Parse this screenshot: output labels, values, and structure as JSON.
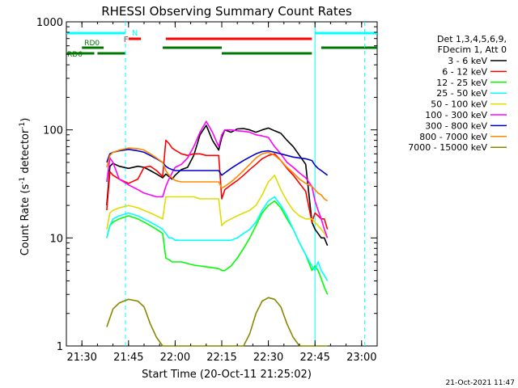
{
  "chart_data": {
    "type": "line",
    "title": "RHESSI Observing Summary Count Rates",
    "xlabel": "Start Time (20-Oct-11 21:25:02)",
    "ylabel_main": "Count Rate (s",
    "ylabel_sup": "-1",
    "ylabel_mid": " detector",
    "ylabel_sup2": "-1",
    "ylabel_end": ")",
    "y_scale": "log",
    "xlim": [
      25,
      125
    ],
    "ylim": [
      1,
      1000
    ],
    "x_ticks": [
      {
        "v": 30,
        "label": "21:30"
      },
      {
        "v": 45,
        "label": "21:45"
      },
      {
        "v": 60,
        "label": "22:00"
      },
      {
        "v": 75,
        "label": "22:15"
      },
      {
        "v": 90,
        "label": "22:30"
      },
      {
        "v": 105,
        "label": "22:45"
      },
      {
        "v": 120,
        "label": "23:00"
      }
    ],
    "y_ticks": [
      {
        "v": 1,
        "label": "1"
      },
      {
        "v": 10,
        "label": "10"
      },
      {
        "v": 100,
        "label": "100"
      },
      {
        "v": 1000,
        "label": "1000"
      }
    ],
    "legend_header": [
      "Det 1,3,4,5,6,9,",
      "FDecim 1, Att 0"
    ],
    "legend_position": "right",
    "series": [
      {
        "name": "3 - 6 keV",
        "color": "#000000",
        "x": [
          38,
          39,
          40,
          42,
          45,
          48,
          50,
          52,
          54,
          56,
          57,
          58,
          59,
          60,
          62,
          64,
          66,
          68,
          70,
          72,
          74,
          75,
          76,
          78,
          80,
          82,
          84,
          86,
          88,
          90,
          92,
          94,
          96,
          98,
          100,
          102,
          104,
          105,
          106,
          107,
          108,
          109
        ],
        "y": [
          20,
          46,
          49,
          46,
          44,
          46,
          45,
          42,
          39,
          36,
          39,
          37,
          35,
          38,
          43,
          45,
          58,
          90,
          110,
          80,
          65,
          85,
          100,
          95,
          102,
          103,
          100,
          95,
          100,
          104,
          98,
          93,
          80,
          70,
          58,
          48,
          14,
          12,
          11,
          10,
          10,
          8.5
        ]
      },
      {
        "name": "6 - 12 keV",
        "color": "#ff0000",
        "x": [
          38,
          39,
          40,
          42,
          45,
          48,
          50,
          52,
          54,
          56,
          57,
          58,
          59,
          60,
          62,
          64,
          66,
          68,
          70,
          72,
          74,
          75,
          76,
          78,
          80,
          82,
          84,
          86,
          88,
          90,
          92,
          94,
          96,
          98,
          100,
          102,
          104,
          105,
          106,
          107,
          108,
          109
        ],
        "y": [
          18,
          41,
          38,
          35,
          32,
          35,
          45,
          46,
          42,
          37,
          80,
          75,
          68,
          65,
          60,
          58,
          60,
          60,
          58,
          58,
          58,
          23,
          28,
          31,
          34,
          38,
          43,
          48,
          54,
          58,
          60,
          52,
          44,
          38,
          32,
          27,
          14,
          17,
          16,
          15,
          15,
          12
        ]
      },
      {
        "name": "12 - 25 keV",
        "color": "#00ff00",
        "x": [
          38,
          39,
          40,
          42,
          45,
          48,
          50,
          52,
          54,
          56,
          57,
          58,
          59,
          60,
          62,
          64,
          66,
          68,
          70,
          72,
          74,
          75,
          76,
          78,
          80,
          82,
          84,
          86,
          88,
          90,
          92,
          94,
          96,
          98,
          100,
          102,
          104,
          105,
          106,
          107,
          108,
          109
        ],
        "y": [
          10,
          13,
          14,
          15,
          16,
          15,
          14,
          13,
          12,
          11,
          6.5,
          6.3,
          6,
          6,
          6,
          5.8,
          5.6,
          5.5,
          5.4,
          5.3,
          5.2,
          5,
          5,
          5.5,
          6.5,
          8,
          10,
          13,
          17,
          20,
          22,
          19,
          15,
          12,
          9,
          7,
          5,
          5.5,
          5,
          4.2,
          3.5,
          3
        ]
      },
      {
        "name": "25 - 50 keV",
        "color": "#00ffff",
        "x": [
          38,
          39,
          40,
          42,
          45,
          48,
          50,
          52,
          54,
          56,
          57,
          58,
          59,
          60,
          62,
          64,
          66,
          68,
          70,
          72,
          74,
          75,
          76,
          78,
          80,
          82,
          84,
          86,
          88,
          90,
          92,
          94,
          96,
          98,
          100,
          102,
          104,
          105,
          106,
          107,
          108,
          109
        ],
        "y": [
          10,
          13,
          15,
          16,
          17,
          16,
          15,
          14,
          13,
          12,
          11,
          10,
          10,
          9.5,
          9.5,
          9.5,
          9.5,
          9.5,
          9.5,
          9.5,
          9.5,
          9.5,
          9.5,
          9.5,
          10,
          11,
          12,
          14,
          18,
          22,
          24,
          20,
          16,
          12,
          9,
          7,
          5.5,
          5,
          6,
          5,
          4.5,
          4
        ]
      },
      {
        "name": "50 - 100 keV",
        "color": "#dddd00",
        "x": [
          38,
          39,
          40,
          42,
          45,
          48,
          50,
          52,
          54,
          56,
          57,
          58,
          59,
          60,
          62,
          64,
          66,
          68,
          70,
          72,
          74,
          75,
          76,
          78,
          80,
          82,
          84,
          86,
          88,
          90,
          92,
          94,
          96,
          98,
          100,
          102,
          104,
          105,
          106,
          107,
          108,
          109
        ],
        "y": [
          12,
          17,
          18,
          19,
          20,
          19,
          18,
          17,
          16,
          15,
          24,
          24,
          24,
          24,
          24,
          24,
          24,
          23,
          23,
          23,
          23,
          13,
          14,
          15,
          16,
          17,
          18,
          20,
          25,
          33,
          38,
          28,
          22,
          18,
          16,
          15,
          15,
          14,
          13,
          12,
          11,
          10
        ]
      },
      {
        "name": "100 - 300 keV",
        "color": "#ff00ff",
        "x": [
          38,
          39,
          40,
          42,
          45,
          48,
          50,
          52,
          54,
          56,
          57,
          58,
          59,
          60,
          62,
          64,
          66,
          68,
          70,
          72,
          74,
          75,
          76,
          78,
          80,
          82,
          84,
          86,
          88,
          90,
          92,
          94,
          96,
          98,
          100,
          102,
          104,
          105,
          106,
          107,
          108,
          109
        ],
        "y": [
          33,
          55,
          50,
          35,
          31,
          28,
          26,
          25,
          24,
          24,
          30,
          35,
          40,
          45,
          48,
          55,
          70,
          95,
          120,
          95,
          70,
          90,
          100,
          100,
          98,
          97,
          95,
          90,
          88,
          85,
          70,
          60,
          50,
          45,
          40,
          36,
          30,
          22,
          18,
          15,
          12,
          10
        ]
      },
      {
        "name": "300 - 800 keV",
        "color": "#0000cc",
        "x": [
          38,
          39,
          40,
          42,
          45,
          48,
          50,
          52,
          54,
          56,
          57,
          58,
          59,
          60,
          62,
          64,
          66,
          68,
          70,
          72,
          74,
          75,
          76,
          78,
          80,
          82,
          84,
          86,
          88,
          90,
          92,
          94,
          96,
          98,
          100,
          102,
          104,
          105,
          106,
          107,
          108,
          109
        ],
        "y": [
          50,
          60,
          62,
          64,
          66,
          64,
          62,
          58,
          54,
          50,
          46,
          44,
          43,
          42,
          42,
          42,
          42,
          42,
          42,
          42,
          42,
          38,
          40,
          44,
          48,
          52,
          56,
          60,
          63,
          64,
          62,
          60,
          58,
          56,
          55,
          54,
          52,
          47,
          44,
          42,
          40,
          38
        ]
      },
      {
        "name": "800 - 7000 keV",
        "color": "#ff8800",
        "x": [
          38,
          39,
          40,
          42,
          45,
          48,
          50,
          52,
          54,
          56,
          57,
          58,
          59,
          60,
          62,
          64,
          66,
          68,
          70,
          72,
          74,
          75,
          76,
          78,
          80,
          82,
          84,
          86,
          88,
          90,
          92,
          94,
          96,
          98,
          100,
          102,
          104,
          105,
          106,
          107,
          108,
          109
        ],
        "y": [
          45,
          58,
          62,
          65,
          68,
          67,
          65,
          60,
          55,
          50,
          42,
          38,
          36,
          34,
          33,
          33,
          33,
          33,
          33,
          33,
          33,
          29,
          30,
          33,
          37,
          42,
          48,
          55,
          60,
          62,
          58,
          52,
          45,
          40,
          35,
          32,
          30,
          28,
          26,
          25,
          23,
          22
        ]
      },
      {
        "name": "7000 - 15000 keV",
        "color": "#888800",
        "x": [
          38,
          40,
          42,
          45,
          48,
          50,
          52,
          54,
          56,
          57,
          58,
          59,
          60,
          62,
          64,
          66,
          68,
          70,
          72,
          74,
          75,
          76,
          78,
          80,
          82,
          84,
          86,
          88,
          90,
          92,
          94,
          96,
          98,
          100,
          102,
          104,
          105,
          106,
          107,
          108,
          109
        ],
        "y": [
          1.5,
          2.2,
          2.5,
          2.7,
          2.6,
          2.3,
          1.6,
          1.2,
          1,
          1,
          1,
          1,
          1,
          1,
          1,
          1,
          1,
          1,
          1,
          1,
          1,
          1,
          1,
          1,
          1,
          1.3,
          2,
          2.6,
          2.8,
          2.7,
          2.3,
          1.6,
          1.2,
          1,
          1,
          1,
          1,
          1,
          1,
          1,
          1
        ]
      }
    ],
    "markers": [
      {
        "label": "N",
        "color": "#00ffff",
        "x": 44.5
      },
      {
        "label": "F",
        "color": "#ff0000",
        "x": 45
      }
    ],
    "bars": [
      {
        "name": "night",
        "color": "#00ffff",
        "level": 1,
        "ranges": [
          [
            25,
            44
          ],
          [
            105,
            125
          ]
        ]
      },
      {
        "name": "flare",
        "color": "#ff0000",
        "level": 2,
        "ranges": [
          [
            45,
            49
          ],
          [
            57,
            104
          ]
        ]
      },
      {
        "name": "RD0",
        "label": "RD0",
        "color": "#007700",
        "level": 3,
        "ranges": [
          [
            30,
            37
          ],
          [
            56,
            75
          ],
          [
            107,
            125
          ]
        ]
      },
      {
        "name": "RD6",
        "label": "RD6",
        "color": "#007700",
        "level": 4,
        "ranges": [
          [
            25,
            34
          ],
          [
            35,
            44
          ],
          [
            75,
            104
          ]
        ]
      }
    ],
    "vlines": [
      {
        "x": 44,
        "color": "#00ffff",
        "style": "dashed"
      },
      {
        "x": 105,
        "color": "#00ffff",
        "style": "solid"
      },
      {
        "x": 121,
        "color": "#00ffff",
        "style": "dashed"
      }
    ]
  },
  "footer_timestamp": "21-Oct-2021 11:47"
}
